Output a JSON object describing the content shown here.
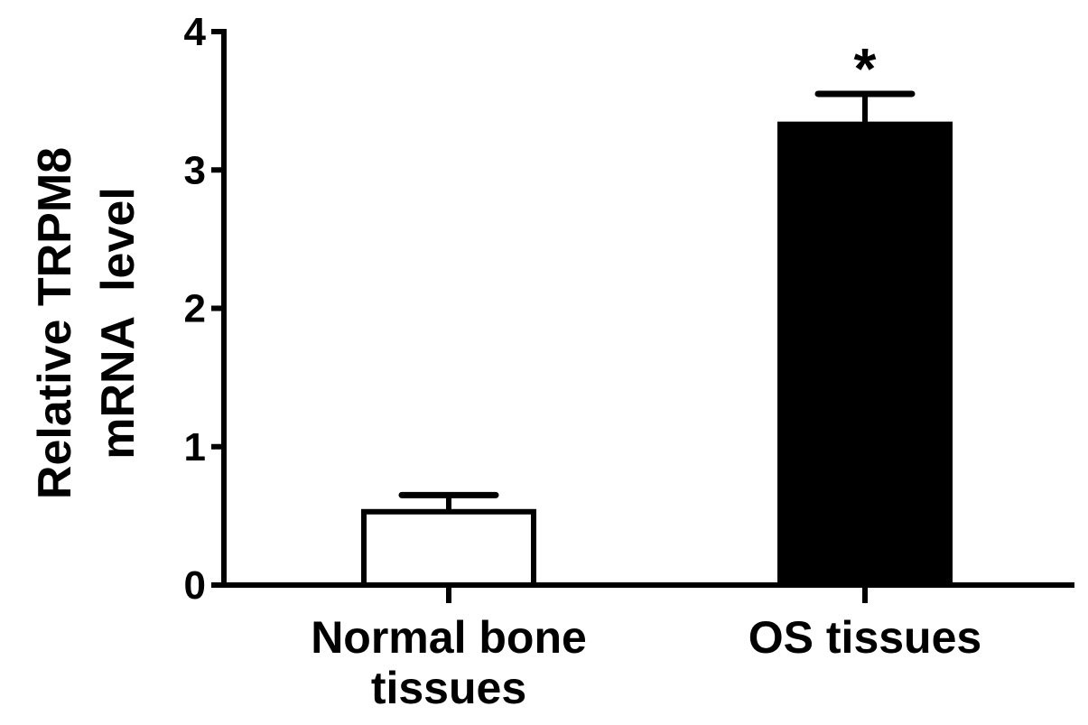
{
  "chart_data": {
    "type": "bar",
    "title": "",
    "ylabel": [
      "Relative TRPM8",
      "mRNA  level"
    ],
    "xlabel": "",
    "categories": [
      [
        "Normal bone",
        "tissues"
      ],
      [
        "OS tissues"
      ]
    ],
    "values": [
      0.53,
      3.33
    ],
    "error": [
      0.12,
      0.22
    ],
    "bar_fill": [
      "#ffffff",
      "#000000"
    ],
    "bar_stroke": "#000000",
    "ylim": [
      0,
      4
    ],
    "yticks": [
      0,
      1,
      2,
      3,
      4
    ],
    "ytick_labels": [
      "0",
      "1",
      "2",
      "3",
      "4"
    ],
    "annotations": [
      {
        "text": "*",
        "category_index": 1
      }
    ],
    "grid": false,
    "legend": "none"
  }
}
